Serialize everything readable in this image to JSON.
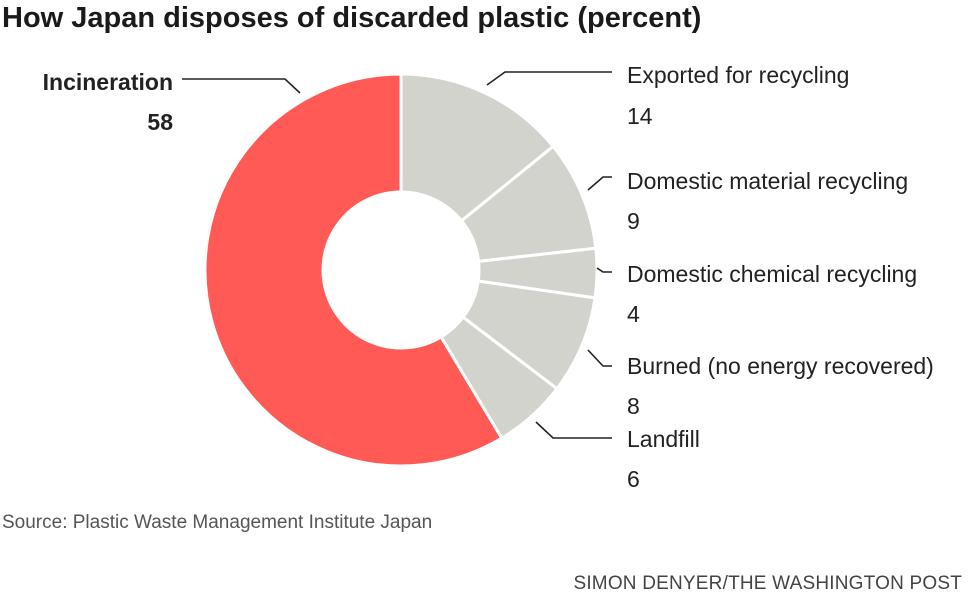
{
  "chart_data": {
    "type": "pie",
    "donut": true,
    "title": "How Japan disposes of discarded plastic (percent)",
    "categories": [
      "Exported for recycling",
      "Domestic material recycling",
      "Domestic chemical recycling",
      "Burned (no energy recovered)",
      "Landfill",
      "Incineration"
    ],
    "values": [
      14,
      9,
      4,
      8,
      6,
      58
    ],
    "colors": [
      "#d3d3ce",
      "#d3d3ce",
      "#d3d3ce",
      "#d3d3ce",
      "#d3d3ce",
      "#ff5a55"
    ],
    "highlight": "Incineration"
  },
  "source": "Source: Plastic Waste Management Institute Japan",
  "credit": "SIMON DENYER/THE WASHINGTON POST"
}
